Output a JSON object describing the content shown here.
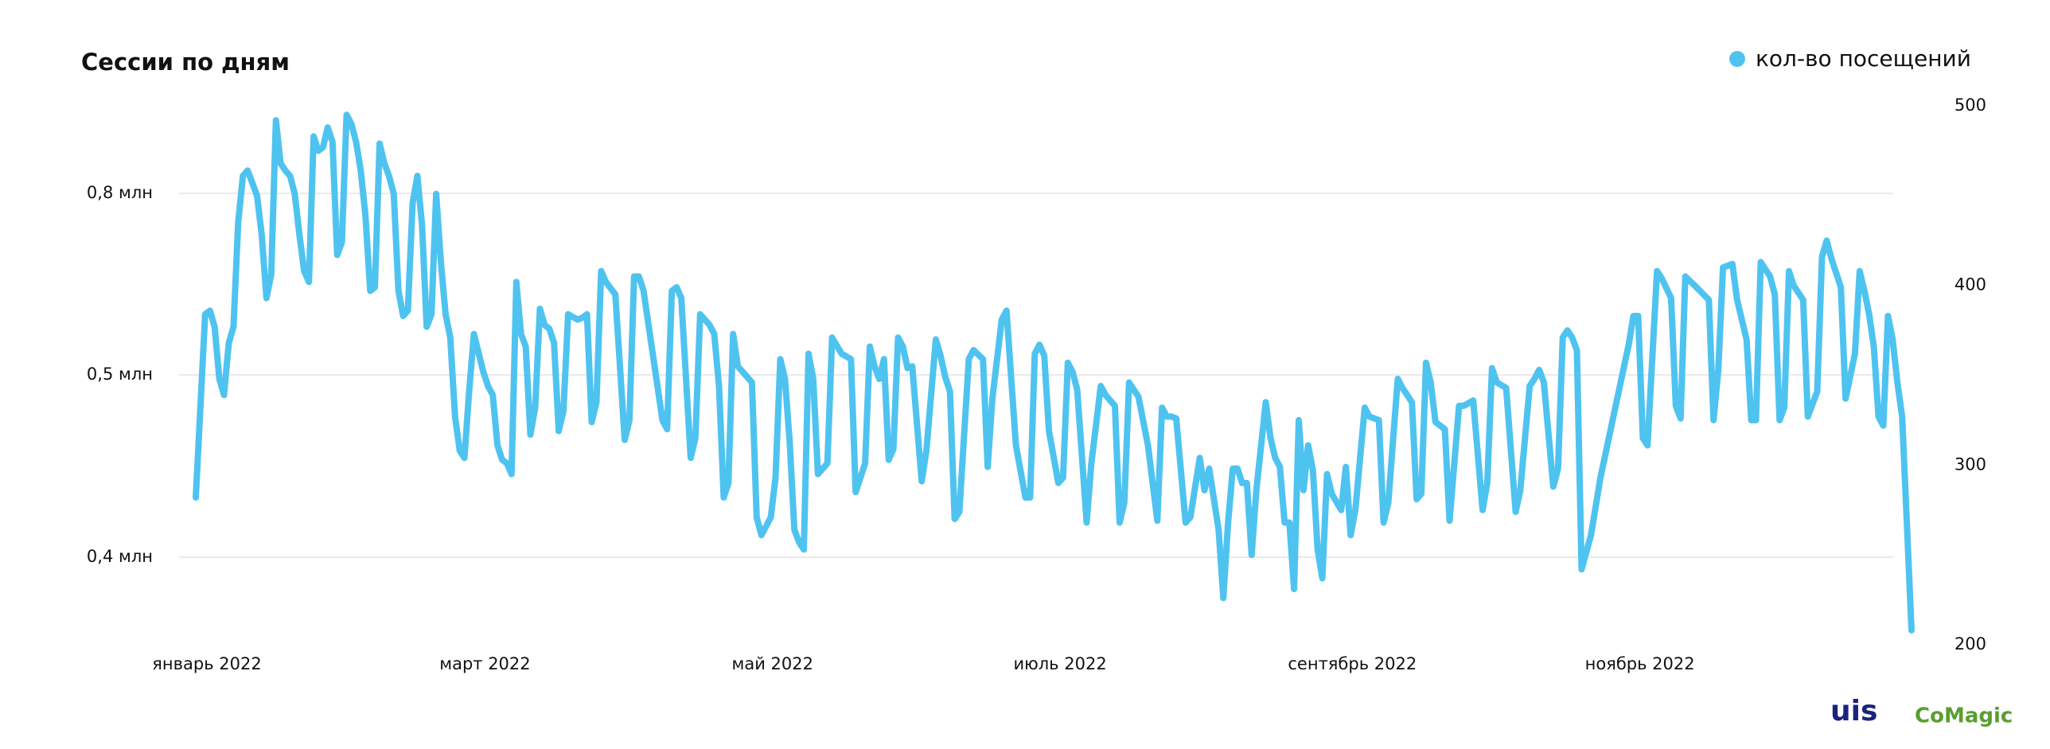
{
  "chart_data": {
    "type": "line",
    "title": "Сессии по дням",
    "left_axis_labels": [
      "0,8 млн",
      "0,5 млн",
      "0,4 млн"
    ],
    "xlim": [
      1,
      365
    ],
    "xticks": [
      {
        "value": 1,
        "label": "январь 2022"
      },
      {
        "value": 60,
        "label": "март 2022"
      },
      {
        "value": 121,
        "label": "май 2022"
      },
      {
        "value": 182,
        "label": "июль 2022"
      },
      {
        "value": 244,
        "label": "сентябрь 2022"
      },
      {
        "value": 305,
        "label": "ноябрь 2022"
      }
    ],
    "y2lim": [
      200,
      500
    ],
    "y2ticks": [
      200,
      300,
      400,
      500
    ],
    "legend": "top-right",
    "logos": [
      "uis",
      "CoMagic"
    ],
    "x": [
      1,
      3,
      4,
      5,
      6,
      7,
      8,
      9,
      10,
      11,
      12,
      14,
      15,
      16,
      17,
      18,
      19,
      20,
      21,
      22,
      23,
      24,
      25,
      26,
      27,
      28,
      29,
      30,
      31,
      32,
      33,
      34,
      35,
      36,
      37,
      38,
      39,
      40,
      41,
      42,
      43,
      44,
      45,
      46,
      47,
      48,
      49,
      50,
      51,
      52,
      53,
      54,
      55,
      56,
      57,
      58,
      59,
      60,
      62,
      63,
      64,
      65,
      66,
      67,
      68,
      69,
      70,
      71,
      72,
      73,
      74,
      75,
      76,
      77,
      78,
      79,
      80,
      82,
      83,
      84,
      85,
      86,
      87,
      88,
      90,
      92,
      93,
      94,
      95,
      96,
      100,
      101,
      102,
      103,
      104,
      106,
      107,
      108,
      110,
      111,
      112,
      113,
      114,
      115,
      116,
      118,
      119,
      120,
      121,
      123,
      124,
      125,
      126,
      127,
      128,
      129,
      130,
      131,
      132,
      133,
      135,
      136,
      138,
      140,
      141,
      143,
      144,
      145,
      146,
      147,
      148,
      149,
      150,
      151,
      152,
      153,
      155,
      156,
      158,
      159,
      160,
      161,
      162,
      163,
      165,
      166,
      168,
      169,
      170,
      172,
      173,
      174,
      175,
      177,
      178,
      179,
      180,
      181,
      182,
      184,
      185,
      186,
      187,
      188,
      190,
      191,
      193,
      194,
      196,
      197,
      198,
      199,
      200,
      201,
      203,
      205,
      206,
      207,
      208,
      209,
      211,
      212,
      214,
      215,
      216,
      218,
      219,
      220,
      221,
      222,
      223,
      224,
      225,
      226,
      228,
      229,
      230,
      231,
      232,
      233,
      234,
      235,
      236,
      237,
      238,
      239,
      240,
      241,
      242,
      244,
      245,
      246,
      247,
      249,
      250,
      252,
      253,
      254,
      256,
      257,
      259,
      260,
      261,
      262,
      263,
      264,
      266,
      267,
      269,
      270,
      272,
      274,
      275,
      276,
      277,
      279,
      281,
      282,
      284,
      285,
      286,
      287,
      289,
      290,
      291,
      292,
      293,
      294,
      295,
      297,
      299,
      302,
      305,
      306,
      307,
      308,
      309,
      311,
      312,
      314,
      315,
      316,
      317,
      319,
      322,
      323,
      324,
      325,
      327,
      328,
      330,
      331,
      332,
      333,
      335,
      336,
      337,
      338,
      339,
      340,
      342,
      343,
      345,
      346,
      347,
      348,
      350,
      351,
      353,
      354,
      355,
      356,
      357,
      358,
      359,
      360,
      361,
      362,
      363,
      364,
      365
    ],
    "series": [
      {
        "name": "кол-во посещений",
        "color": "#4fc3f0",
        "axis": "y2",
        "values": [
          282,
          384,
          386,
          377,
          348,
          339,
          368,
          377,
          435,
          461,
          464,
          450,
          428,
          393,
          406,
          492,
          468,
          464,
          461,
          451,
          428,
          408,
          402,
          483,
          475,
          477,
          488,
          480,
          417,
          424,
          495,
          490,
          480,
          464,
          439,
          397,
          399,
          479,
          468,
          461,
          451,
          397,
          383,
          386,
          446,
          461,
          434,
          377,
          384,
          451,
          413,
          384,
          371,
          327,
          308,
          304,
          341,
          373,
          352,
          344,
          339,
          311,
          303,
          301,
          295,
          402,
          373,
          366,
          317,
          332,
          387,
          378,
          376,
          368,
          319,
          330,
          384,
          381,
          382,
          384,
          324,
          335,
          408,
          402,
          395,
          314,
          325,
          405,
          405,
          397,
          325,
          320,
          397,
          399,
          393,
          304,
          315,
          384,
          378,
          373,
          344,
          282,
          290,
          373,
          355,
          349,
          346,
          271,
          261,
          271,
          293,
          359,
          348,
          313,
          264,
          257,
          253,
          362,
          348,
          295,
          301,
          371,
          362,
          359,
          285,
          301,
          366,
          355,
          348,
          359,
          303,
          309,
          371,
          366,
          354,
          355,
          291,
          308,
          370,
          361,
          349,
          341,
          270,
          274,
          359,
          364,
          359,
          299,
          337,
          381,
          386,
          348,
          311,
          282,
          282,
          362,
          367,
          361,
          319,
          290,
          293,
          357,
          352,
          342,
          268,
          301,
          344,
          339,
          333,
          268,
          279,
          346,
          342,
          338,
          311,
          269,
          332,
          327,
          327,
          326,
          268,
          271,
          304,
          286,
          298,
          264,
          226,
          268,
          298,
          298,
          290,
          290,
          250,
          286,
          335,
          315,
          304,
          299,
          268,
          268,
          231,
          325,
          286,
          311,
          297,
          253,
          237,
          295,
          284,
          275,
          299,
          261,
          275,
          332,
          327,
          325,
          268,
          279,
          348,
          343,
          335,
          281,
          284,
          357,
          346,
          324,
          320,
          269,
          333,
          333,
          336,
          275,
          290,
          354,
          346,
          343,
          274,
          286,
          344,
          348,
          353,
          346,
          288,
          298,
          371,
          375,
          371,
          364,
          242,
          261,
          293,
          330,
          367,
          383,
          383,
          315,
          311,
          408,
          404,
          393,
          333,
          326,
          405,
          400,
          392,
          325,
          353,
          410,
          412,
          392,
          370,
          325,
          325,
          413,
          405,
          395,
          325,
          332,
          408,
          400,
          392,
          327,
          341,
          416,
          425,
          415,
          399,
          337,
          362,
          408,
          397,
          384,
          366,
          327,
          322,
          383,
          370,
          346,
          327,
          268,
          208
        ]
      }
    ]
  }
}
